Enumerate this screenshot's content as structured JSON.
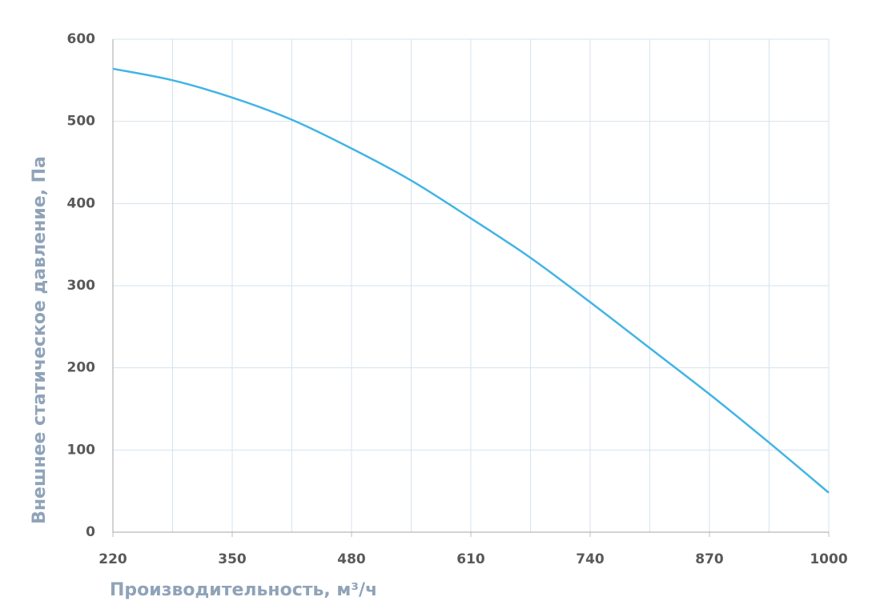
{
  "chart_data": {
    "type": "line",
    "x_label": "Производительность, м³/ч",
    "y_label": "Внешнее статическое давление, Па",
    "x": [
      220,
      285,
      350,
      415,
      480,
      545,
      610,
      675,
      740,
      805,
      870,
      935,
      1000
    ],
    "series": [
      {
        "color": "#41b4e6",
        "values": [
          564,
          550,
          529,
          502,
          467,
          428,
          382,
          334,
          280,
          224,
          168,
          109,
          48
        ]
      }
    ],
    "xlim": [
      220,
      1000
    ],
    "xticks": [
      220,
      350,
      480,
      610,
      740,
      870,
      1000
    ],
    "xgrid_minor": [
      285,
      415,
      545,
      675,
      805,
      935
    ],
    "ylim": [
      0,
      600
    ],
    "yticks": [
      0,
      100,
      200,
      300,
      400,
      500,
      600
    ],
    "grid": true
  }
}
